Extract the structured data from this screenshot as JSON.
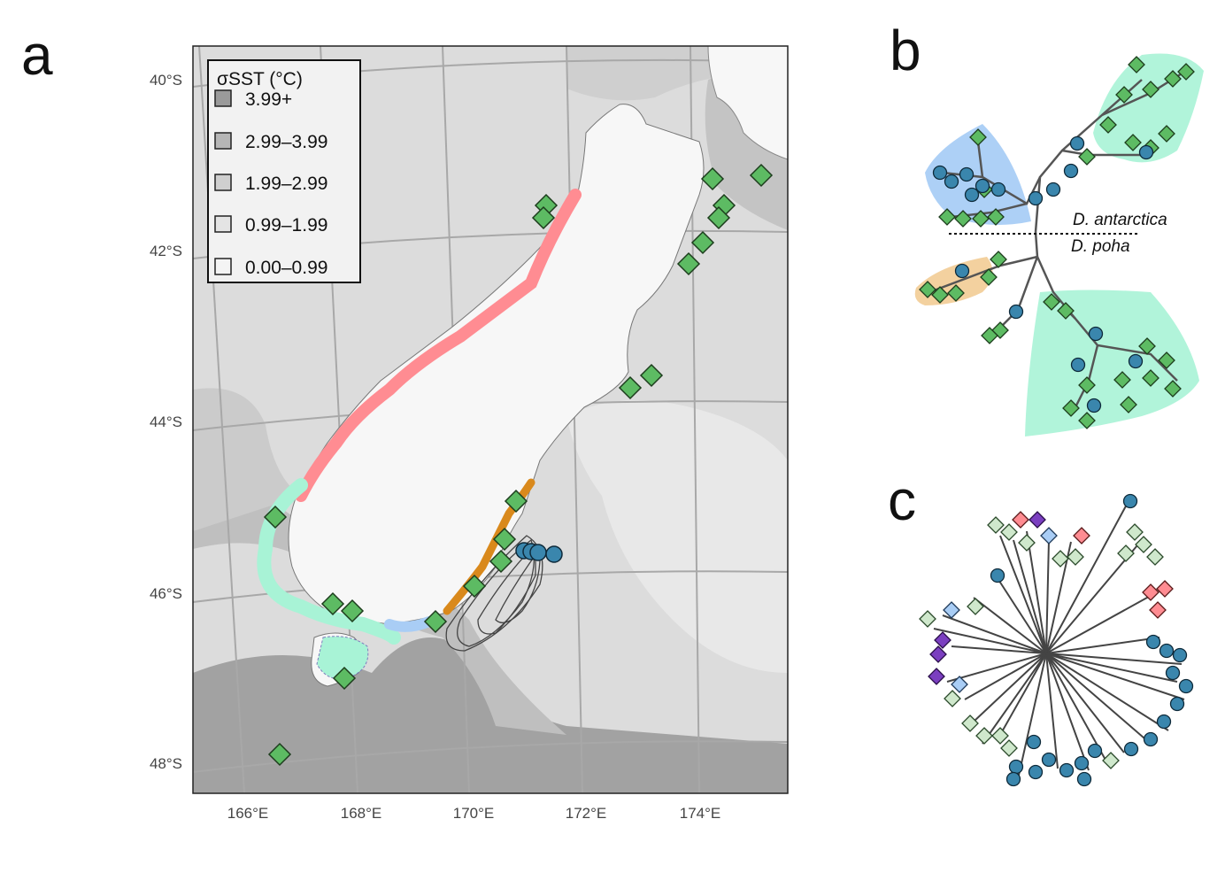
{
  "panels": {
    "a": "a",
    "b": "b",
    "c": "c"
  },
  "map": {
    "lat_labels": [
      "40°S",
      "42°S",
      "44°S",
      "46°S",
      "48°S"
    ],
    "lon_labels": [
      "166°E",
      "168°E",
      "170°E",
      "172°E",
      "174°E"
    ],
    "legend": {
      "title": "σSST (°C)",
      "items": [
        {
          "label": "3.99+",
          "color": "#9a9a9a"
        },
        {
          "label": "2.99–3.99",
          "color": "#b6b6b6"
        },
        {
          "label": "1.99–2.99",
          "color": "#cfcfcf"
        },
        {
          "label": "0.99–1.99",
          "color": "#e4e4e4"
        },
        {
          "label": "0.00–0.99",
          "color": "#f4f4f4"
        }
      ]
    },
    "colors": {
      "land": "#f7f7f7",
      "sea_base": "#dedede",
      "pink_clade": "#ff8c92",
      "mint_clade": "#a8f3d6",
      "blue_clade": "#a9cdf5",
      "orange_clade": "#d9891c",
      "green_marker": "#5dbb63",
      "blue_marker": "#3a86ad"
    }
  },
  "tree": {
    "species_a": "D. antarctica",
    "species_b": "D. poha"
  }
}
